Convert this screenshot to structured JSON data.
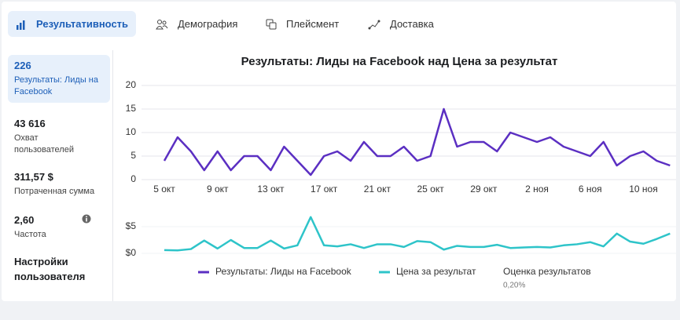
{
  "tabs": [
    "Результативность",
    "Демография",
    "Плейсмент",
    "Доставка"
  ],
  "metrics": [
    {
      "value": "226",
      "label": "Результаты: Лиды на Facebook"
    },
    {
      "value": "43 616",
      "label": "Охват пользователей"
    },
    {
      "value": "311,57 $",
      "label": "Потраченная сумма"
    },
    {
      "value": "2,60",
      "label": "Частота"
    }
  ],
  "settings_link": "Настройки пользователя",
  "legend_extra": {
    "label": "Оценка результатов",
    "value": "0,20%"
  },
  "chart_data": {
    "type": "line",
    "title": "Результаты: Лиды на Facebook над Цена за результат",
    "categories": [
      "5 окт",
      null,
      null,
      null,
      "9 окт",
      null,
      null,
      null,
      "13 окт",
      null,
      null,
      null,
      "17 окт",
      null,
      null,
      null,
      "21 окт",
      null,
      null,
      null,
      "25 окт",
      null,
      null,
      null,
      "29 окт",
      null,
      null,
      null,
      "2 ноя",
      null,
      null,
      null,
      "6 ноя",
      null,
      null,
      null,
      "10 ноя",
      null,
      null
    ],
    "series": [
      {
        "name": "Результаты: Лиды на Facebook",
        "color": "#5b2fc2",
        "values": [
          4,
          9,
          6,
          2,
          6,
          2,
          5,
          5,
          2,
          7,
          4,
          1,
          5,
          6,
          4,
          8,
          5,
          5,
          7,
          4,
          5,
          15,
          7,
          8,
          8,
          6,
          10,
          9,
          8,
          9,
          7,
          6,
          5,
          8,
          3,
          5,
          6,
          4,
          3
        ]
      },
      {
        "name": "Цена за результат",
        "color": "#2ec4c9",
        "axis": "y2",
        "values": [
          0.6,
          0.55,
          0.8,
          2.4,
          0.9,
          2.5,
          1,
          1,
          2.4,
          0.9,
          1.5,
          6.8,
          1.5,
          1.3,
          1.7,
          1.0,
          1.7,
          1.7,
          1.2,
          2.3,
          2.1,
          0.7,
          1.4,
          1.2,
          1.2,
          1.6,
          1.0,
          1.1,
          1.2,
          1.1,
          1.5,
          1.7,
          2.1,
          1.3,
          3.7,
          2.2,
          1.8,
          2.7,
          3.7
        ]
      }
    ],
    "ylim": [
      0,
      20
    ],
    "yticks": [
      0,
      5,
      10,
      15,
      20
    ],
    "y2lim": [
      0,
      7
    ],
    "y2ticks": [
      {
        "value": 0,
        "label": "$0"
      },
      {
        "value": 5,
        "label": "$5"
      }
    ],
    "grid": true
  }
}
